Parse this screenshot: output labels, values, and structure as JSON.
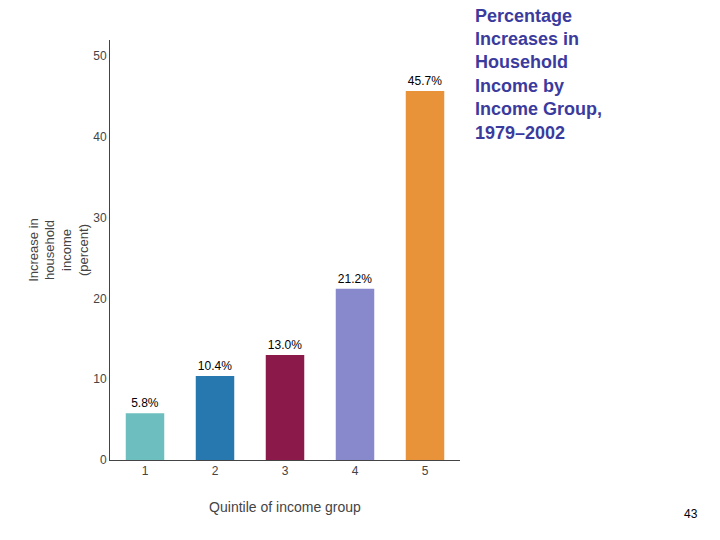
{
  "chart_data": {
    "type": "bar",
    "title": "Percentage\nIncreases in\nHousehold\nIncome by\nIncome Group,\n1979–2002",
    "xlabel": "Quintile of income group",
    "ylabel": "Increase in\nhousehold\nincome\n(percent)",
    "categories": [
      "1",
      "2",
      "3",
      "4",
      "5"
    ],
    "values": [
      5.8,
      10.4,
      13.0,
      21.2,
      45.7
    ],
    "value_labels": [
      "5.8%",
      "10.4%",
      "13.0%",
      "21.2%",
      "45.7%"
    ],
    "colors": [
      "#6dbfbf",
      "#2878b0",
      "#8b1a4a",
      "#8888cc",
      "#e8923a"
    ],
    "title_color": "#3b3b9e",
    "ylim": [
      0,
      52
    ],
    "yticks": [
      0,
      10,
      20,
      30,
      40,
      50
    ],
    "grid": false,
    "data_labels": true,
    "annotations": [
      "43"
    ]
  }
}
